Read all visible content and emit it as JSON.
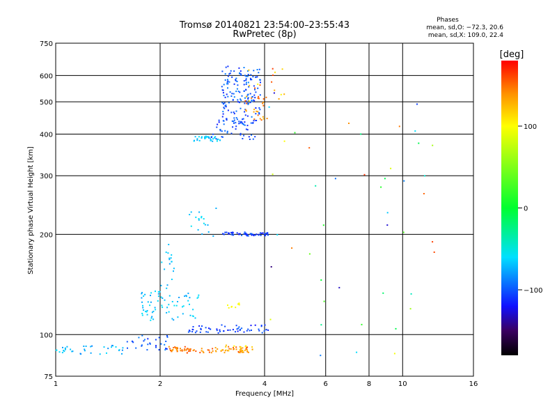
{
  "chart_data": {
    "type": "scatter",
    "title": "Tromsø 20140821 23:54:00–23:55:43",
    "subtitle": "RwPretec (8p)",
    "xlabel": "Frequency [MHz]",
    "ylabel": "Stationary phase Virtual Height [km]",
    "x_scale": "log",
    "y_scale": "log",
    "xlim": [
      1,
      16
    ],
    "ylim": [
      75,
      750
    ],
    "x_ticks": [
      "1",
      "2",
      "4",
      "6",
      "8",
      "10",
      "16"
    ],
    "y_ticks": [
      "75",
      "100",
      "200",
      "300",
      "400",
      "500",
      "600",
      "750"
    ],
    "grid": true,
    "stats": {
      "heading": "Phases",
      "line_o": "mean, sd,O: −72.3, 20.6",
      "line_x": "mean, sd,X: 109.0, 22.4"
    },
    "colorbar": {
      "label": "[deg]",
      "ticks": [
        "100",
        "0",
        "−100"
      ],
      "tick_values": [
        100,
        0,
        -100
      ],
      "range": [
        -180,
        180
      ]
    },
    "clusters": [
      {
        "f": [
          1.0,
          1.12
        ],
        "h": [
          88,
          92
        ],
        "phase": [
          -80,
          -60
        ],
        "n": 14
      },
      {
        "f": [
          1.12,
          1.6
        ],
        "h": [
          87,
          93
        ],
        "phase": [
          -90,
          -60
        ],
        "n": 22
      },
      {
        "f": [
          1.6,
          2.1
        ],
        "h": [
          90,
          100
        ],
        "phase": [
          -115,
          -85
        ],
        "n": 30
      },
      {
        "f": [
          2.05,
          3.6
        ],
        "h": [
          88,
          92
        ],
        "phase": [
          130,
          160
        ],
        "n": 85
      },
      {
        "f": [
          3.0,
          3.7
        ],
        "h": [
          89,
          93
        ],
        "phase": [
          100,
          140
        ],
        "n": 20
      },
      {
        "f": [
          1.75,
          2.6
        ],
        "h": [
          110,
          135
        ],
        "phase": [
          -80,
          -55
        ],
        "n": 70
      },
      {
        "f": [
          2.0,
          2.2
        ],
        "h": [
          135,
          190
        ],
        "phase": [
          -80,
          -60
        ],
        "n": 18
      },
      {
        "f": [
          2.4,
          4.1
        ],
        "h": [
          101,
          107
        ],
        "phase": [
          -120,
          -95
        ],
        "n": 60
      },
      {
        "f": [
          3.1,
          3.4
        ],
        "h": [
          120,
          125
        ],
        "phase": [
          90,
          105
        ],
        "n": 8
      },
      {
        "f": [
          3.0,
          4.1
        ],
        "h": [
          198,
          203
        ],
        "phase": [
          -120,
          -95
        ],
        "n": 55
      },
      {
        "f": [
          2.4,
          2.9
        ],
        "h": [
          195,
          240
        ],
        "phase": [
          -75,
          -55
        ],
        "n": 18
      },
      {
        "f": [
          2.5,
          3.0
        ],
        "h": [
          380,
          395
        ],
        "phase": [
          -80,
          -55
        ],
        "n": 35
      },
      {
        "f": [
          2.8,
          3.8
        ],
        "h": [
          385,
          440
        ],
        "phase": [
          -120,
          -90
        ],
        "n": 50
      },
      {
        "f": [
          3.0,
          3.9
        ],
        "h": [
          430,
          640
        ],
        "phase": [
          -115,
          -85
        ],
        "n": 160
      },
      {
        "f": [
          3.5,
          4.1
        ],
        "h": [
          440,
          520
        ],
        "phase": [
          120,
          160
        ],
        "n": 25
      },
      {
        "f": [
          3.6,
          4.7
        ],
        "h": [
          500,
          650
        ],
        "phase": [
          100,
          170
        ],
        "n": 15
      },
      {
        "f": [
          4.1,
          12.5
        ],
        "h": [
          85,
          600
        ],
        "phase": [
          -150,
          170
        ],
        "n": 45
      }
    ]
  }
}
